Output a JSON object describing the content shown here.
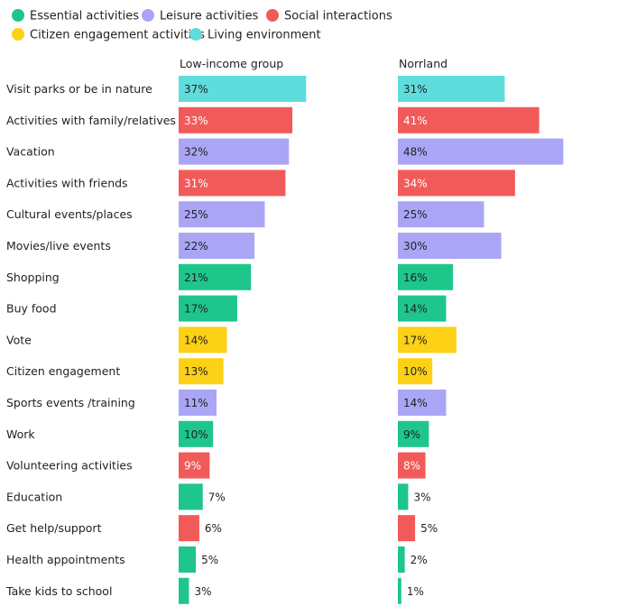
{
  "chart_data": {
    "type": "bar",
    "orientation": "horizontal",
    "title": "",
    "legend": [
      {
        "key": "essential",
        "label": "Essential activities",
        "color": "#1ec68c"
      },
      {
        "key": "leisure",
        "label": "Leisure activities",
        "color": "#aaa6f5"
      },
      {
        "key": "social",
        "label": "Social interactions",
        "color": "#f25a5a"
      },
      {
        "key": "citizen",
        "label": "Citizen engagement activities",
        "color": "#fcd116"
      },
      {
        "key": "living",
        "label": "Living environment",
        "color": "#5fdcdc"
      }
    ],
    "categories": [
      "Visit parks or be in nature",
      "Activities with family/relatives",
      "Vacation",
      "Activities with friends",
      "Cultural events/places",
      "Movies/live events",
      "Shopping",
      "Buy food",
      "Vote",
      "Citizen engagement",
      "Sports events /training",
      "Work",
      "Volunteering activities",
      "Education",
      "Get help/support",
      "Health appointments",
      "Take kids to school"
    ],
    "category_groups": [
      "living",
      "social",
      "leisure",
      "social",
      "leisure",
      "leisure",
      "essential",
      "essential",
      "citizen",
      "citizen",
      "leisure",
      "essential",
      "social",
      "essential",
      "social",
      "essential",
      "essential"
    ],
    "series": [
      {
        "name": "Low-income group",
        "values": [
          37,
          33,
          32,
          31,
          25,
          22,
          21,
          17,
          14,
          13,
          11,
          10,
          9,
          7,
          6,
          5,
          3
        ]
      },
      {
        "name": "Norrland",
        "values": [
          31,
          41,
          48,
          34,
          25,
          30,
          16,
          14,
          17,
          10,
          14,
          9,
          8,
          3,
          5,
          2,
          1
        ]
      }
    ],
    "value_suffix": "%",
    "xlim": [
      0,
      48
    ]
  }
}
